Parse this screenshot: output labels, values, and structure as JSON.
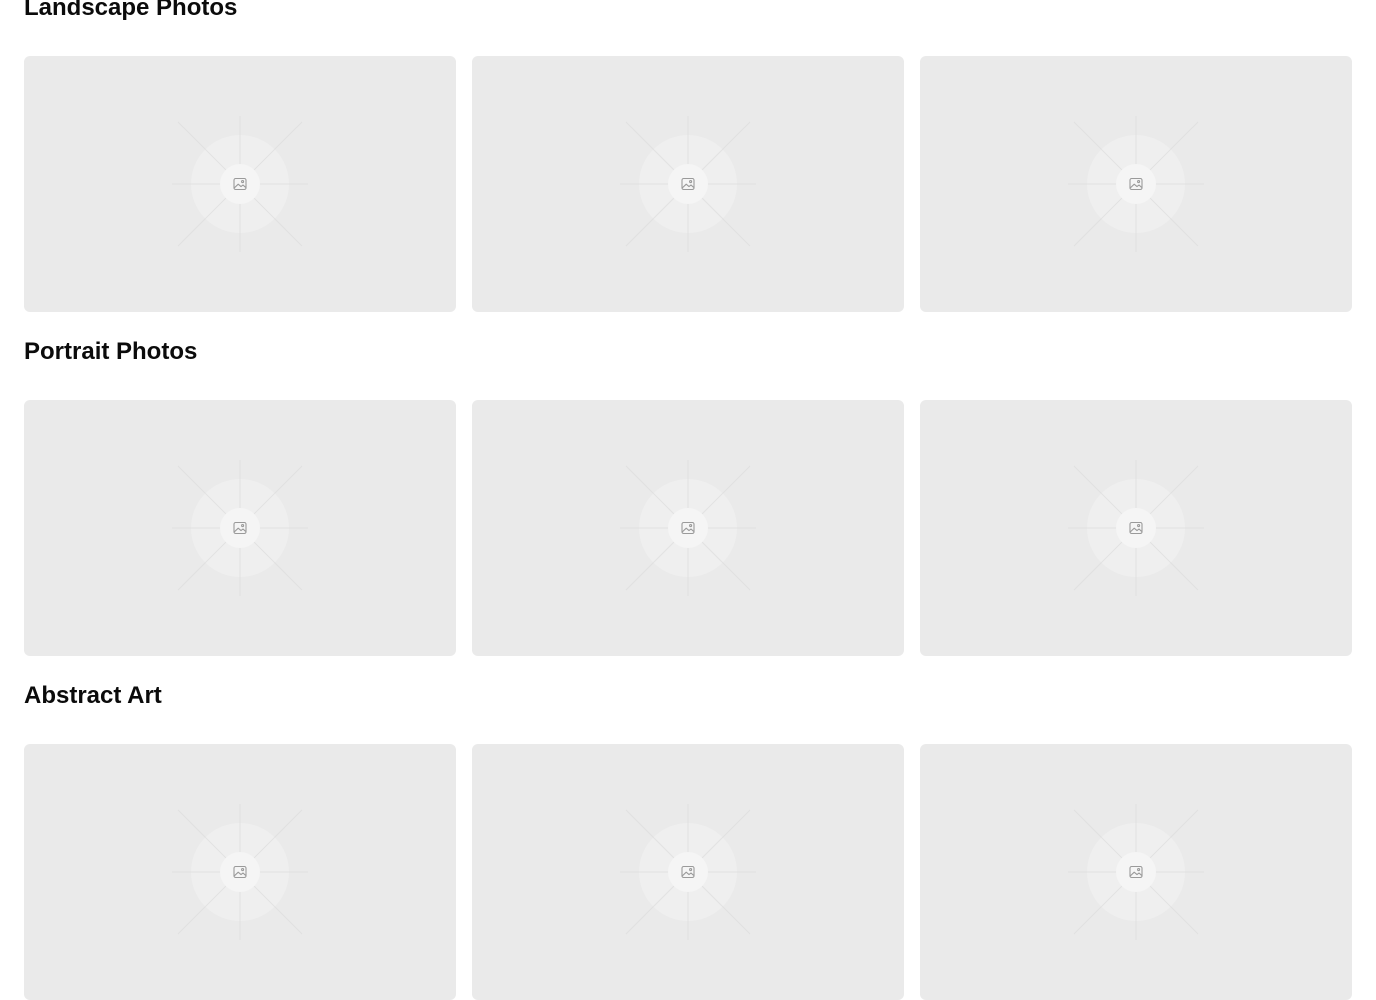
{
  "sections": [
    {
      "title": "Landscape Photos",
      "items": [
        {
          "icon": "image-icon"
        },
        {
          "icon": "image-icon"
        },
        {
          "icon": "image-icon"
        }
      ]
    },
    {
      "title": "Portrait Photos",
      "items": [
        {
          "icon": "image-icon"
        },
        {
          "icon": "image-icon"
        },
        {
          "icon": "image-icon"
        }
      ]
    },
    {
      "title": "Abstract Art",
      "items": [
        {
          "icon": "image-icon"
        },
        {
          "icon": "image-icon"
        },
        {
          "icon": "image-icon"
        }
      ]
    }
  ],
  "colors": {
    "card_bg": "#eaeaea",
    "placeholder_ring": "#f0f0f0",
    "placeholder_lines": "#dcdcdc",
    "icon_stroke": "#9a9a9a",
    "title_text": "#0b0b0b",
    "page_bg": "#ffffff"
  }
}
